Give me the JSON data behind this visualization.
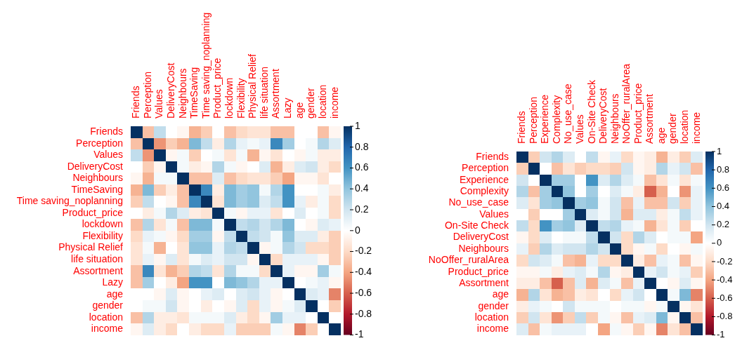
{
  "chart_data": [
    {
      "type": "heatmap",
      "categories": [
        "Friends",
        "Perception",
        "Values",
        "DeliveryCost",
        "Neighbours",
        "TimeSaving",
        "Time saving_noplanning",
        "Product_price",
        "lockdown",
        "Flexibility",
        "Physical Relief",
        "life situation",
        "Assortment",
        "Lazy",
        "age",
        "gender",
        "location",
        "income"
      ],
      "y_categories": [
        "Friends",
        "Perception",
        "Values",
        "DeliveryCost",
        "Neighbours",
        "TimeSaving",
        "Time saving_noplanning",
        "Product_price",
        "lockdown",
        "Flexibility",
        "Physical Relief",
        "life situation",
        "Assortment",
        "Lazy",
        "age",
        "gender",
        "location",
        "income"
      ],
      "cells": [
        [
          1,
          -0.3,
          0.25,
          0,
          -0.05,
          -0.35,
          -0.25,
          0,
          -0.3,
          -0.2,
          -0.15,
          -0.15,
          -0.3,
          -0.3,
          0,
          0,
          -0.3,
          -0.05
        ],
        [
          -0.3,
          1,
          -0.45,
          -0.25,
          -0.35,
          0.45,
          0.25,
          -0.1,
          0.3,
          0.1,
          0.05,
          0.1,
          0.65,
          0.35,
          0,
          0.05,
          0.3,
          0.15
        ],
        [
          0.25,
          -0.45,
          1,
          -0.05,
          0.05,
          -0.25,
          0,
          0.05,
          -0.15,
          0.05,
          -0.35,
          -0.05,
          -0.15,
          0,
          -0.05,
          0.05,
          -0.1,
          -0.1
        ],
        [
          0,
          -0.25,
          -0.05,
          1,
          0.05,
          -0.1,
          -0.05,
          0.3,
          0.05,
          -0.05,
          0,
          0.15,
          -0.35,
          -0.1,
          0.15,
          0.2,
          -0.1,
          -0.2
        ],
        [
          -0.05,
          -0.35,
          0.05,
          0.05,
          1,
          -0.3,
          -0.3,
          0.15,
          -0.3,
          -0.2,
          -0.15,
          -0.15,
          -0.25,
          -0.4,
          -0.05,
          -0.05,
          -0.15,
          0
        ],
        [
          -0.35,
          0.45,
          -0.25,
          -0.1,
          -0.3,
          1,
          0.65,
          -0.1,
          0.45,
          0.35,
          0.4,
          0.05,
          0.3,
          0.6,
          0,
          0,
          0.05,
          -0.1
        ],
        [
          -0.25,
          0.25,
          0,
          -0.05,
          -0.3,
          0.65,
          1,
          -0.15,
          0.45,
          0.35,
          0.4,
          0.15,
          0.25,
          0.6,
          0.1,
          -0.1,
          0.05,
          -0.2
        ],
        [
          0,
          -0.1,
          0.05,
          0.3,
          0.15,
          -0.1,
          -0.15,
          1,
          0.05,
          -0.05,
          0.1,
          0.1,
          -0.15,
          0,
          0.15,
          0,
          0.05,
          -0.2
        ],
        [
          -0.3,
          0.3,
          -0.15,
          0.05,
          -0.3,
          0.45,
          0.45,
          0.05,
          1,
          0.25,
          0.3,
          0.2,
          0.3,
          0.45,
          0,
          -0.05,
          0.15,
          0.1
        ],
        [
          -0.2,
          0.1,
          0.05,
          -0.05,
          -0.2,
          0.35,
          0.35,
          -0.05,
          0.25,
          1,
          0.25,
          0.2,
          0.05,
          0.4,
          0.15,
          0.15,
          -0.1,
          -0.25
        ],
        [
          -0.15,
          0.05,
          -0.35,
          0,
          -0.15,
          0.4,
          0.4,
          0.1,
          0.3,
          0.25,
          1,
          -0.05,
          0.05,
          0.3,
          0.2,
          -0.2,
          -0.2,
          -0.25
        ],
        [
          -0.15,
          0.1,
          -0.05,
          0.15,
          -0.15,
          0.05,
          0.15,
          0.1,
          0.2,
          0.2,
          -0.05,
          1,
          -0.2,
          0.1,
          0.1,
          0.1,
          -0.05,
          -0.25
        ],
        [
          -0.3,
          0.65,
          -0.15,
          -0.35,
          -0.25,
          0.3,
          0.25,
          -0.15,
          0.3,
          0.05,
          0.05,
          -0.2,
          1,
          0.1,
          -0.05,
          -0.05,
          0.35,
          0.05
        ],
        [
          -0.3,
          0.35,
          0,
          -0.1,
          -0.4,
          0.6,
          0.6,
          0,
          0.45,
          0.4,
          0.3,
          0.1,
          0.1,
          1,
          0,
          0.05,
          0.1,
          -0.05
        ],
        [
          0,
          0,
          -0.05,
          0.15,
          -0.05,
          0,
          0.1,
          0.15,
          0,
          0.15,
          0.2,
          0.1,
          -0.05,
          0,
          1,
          0.15,
          0.1,
          -0.5
        ],
        [
          0,
          0.05,
          0.05,
          0.2,
          -0.05,
          0,
          -0.1,
          0,
          -0.05,
          0.15,
          -0.2,
          0.1,
          -0.05,
          0.05,
          0.15,
          1,
          0,
          -0.25
        ],
        [
          -0.3,
          0.3,
          -0.1,
          -0.1,
          -0.15,
          0.05,
          0.05,
          0.05,
          0.15,
          -0.1,
          -0.2,
          -0.05,
          0.35,
          0.1,
          0.1,
          0,
          1,
          0
        ],
        [
          -0.05,
          0.15,
          -0.1,
          -0.2,
          0,
          -0.1,
          -0.2,
          -0.2,
          0.1,
          -0.25,
          -0.25,
          -0.25,
          0.05,
          -0.05,
          -0.5,
          -0.25,
          0,
          1
        ]
      ],
      "clim": [
        -1,
        1
      ],
      "cticks": [
        -1,
        -0.8,
        -0.6,
        -0.4,
        -0.2,
        0,
        0.2,
        0.4,
        0.6,
        0.8,
        1
      ]
    },
    {
      "type": "heatmap",
      "categories": [
        "Friends",
        "Perception",
        "Experience",
        "Complexity",
        "No_use_case",
        "Values",
        "On-Site Check",
        "DeliveryCost",
        "Neighbours",
        "NoOffer_ruralArea",
        "Product_price",
        "Assortment",
        "age",
        "gender",
        "location",
        "income"
      ],
      "y_categories": [
        "Friends",
        "Perception",
        "Experience",
        "Complexity",
        "No_use_case",
        "Values",
        "On-Site Check",
        "DeliveryCost",
        "Neighbours",
        "NoOffer_ruralArea",
        "Product_price",
        "Assortment",
        "age",
        "gender",
        "location",
        "income"
      ],
      "cells": [
        [
          1,
          -0.25,
          0.2,
          0.3,
          0.15,
          0,
          0.25,
          -0.05,
          0.1,
          -0.2,
          -0.05,
          -0.1,
          -0.35,
          -0.1,
          -0.25,
          0.15
        ],
        [
          -0.25,
          1,
          0,
          -0.3,
          -0.15,
          -0.25,
          -0.2,
          -0.2,
          -0.25,
          0.2,
          -0.05,
          -0.1,
          0.3,
          0.1,
          0.2,
          -0.3
        ],
        [
          0.2,
          0,
          1,
          0.35,
          0.35,
          0,
          0.6,
          0.15,
          0.3,
          0.15,
          0.05,
          -0.3,
          -0.15,
          0.05,
          -0.15,
          0.05
        ],
        [
          0.3,
          -0.3,
          0.35,
          1,
          0.4,
          0,
          0.35,
          0,
          0.15,
          0.05,
          -0.1,
          -0.6,
          -0.35,
          0,
          -0.45,
          0.1
        ],
        [
          0.15,
          -0.15,
          0.35,
          0.4,
          1,
          0.35,
          0.4,
          0.05,
          0.2,
          -0.3,
          0.1,
          -0.3,
          -0.3,
          0.2,
          -0.25,
          0.1
        ],
        [
          0,
          -0.25,
          0,
          0,
          0.35,
          1,
          0.15,
          0.05,
          0.2,
          -0.35,
          0.15,
          0.15,
          -0.1,
          0.05,
          0.25,
          0.1
        ],
        [
          0.25,
          -0.2,
          0.6,
          0.35,
          0.4,
          0.15,
          1,
          0.25,
          0.3,
          0.1,
          0.05,
          -0.35,
          -0.15,
          0.05,
          -0.25,
          0
        ],
        [
          -0.05,
          -0.2,
          0.15,
          0,
          0.05,
          0.05,
          0.25,
          1,
          0.2,
          -0.2,
          0.3,
          0.15,
          0,
          0.05,
          0.05,
          -0.4
        ],
        [
          0.1,
          -0.25,
          0.3,
          0.15,
          0.2,
          0.2,
          0.3,
          0.2,
          1,
          -0.2,
          -0.05,
          0.05,
          -0.2,
          0,
          -0.05,
          0.05
        ],
        [
          -0.2,
          0.2,
          0.15,
          0.05,
          -0.3,
          -0.35,
          0.1,
          -0.2,
          -0.2,
          1,
          -0.1,
          -0.3,
          0.1,
          0.05,
          -0.3,
          -0.05
        ],
        [
          -0.05,
          -0.05,
          0.05,
          -0.1,
          0.1,
          0.15,
          0.05,
          0.3,
          -0.05,
          -0.1,
          1,
          0.1,
          0.2,
          0.05,
          0.1,
          -0.25
        ],
        [
          -0.1,
          -0.1,
          -0.3,
          -0.6,
          -0.3,
          0.15,
          -0.35,
          0.15,
          0.05,
          -0.3,
          0.1,
          1,
          0,
          -0.05,
          0.15,
          -0.05
        ],
        [
          -0.35,
          0.3,
          -0.15,
          -0.35,
          -0.3,
          -0.1,
          -0.15,
          0,
          -0.2,
          0.1,
          0.2,
          0,
          1,
          0.05,
          0.45,
          -0.5
        ],
        [
          -0.1,
          0.1,
          0.05,
          0,
          0.2,
          0.05,
          0.05,
          0.05,
          0,
          0.05,
          0.05,
          -0.05,
          0.05,
          1,
          -0.05,
          -0.15
        ],
        [
          -0.25,
          0.2,
          -0.15,
          -0.45,
          -0.25,
          0.25,
          -0.25,
          0.05,
          -0.05,
          -0.3,
          0.1,
          0.15,
          0.45,
          -0.05,
          1,
          -0.3
        ],
        [
          0.15,
          -0.3,
          0.05,
          0.1,
          0.1,
          0.1,
          0,
          -0.4,
          0.05,
          -0.05,
          -0.25,
          -0.05,
          -0.5,
          -0.15,
          -0.3,
          1
        ]
      ],
      "clim": [
        -1,
        1
      ],
      "cticks": [
        -1,
        -0.8,
        -0.6,
        -0.4,
        -0.2,
        0,
        0.2,
        0.4,
        0.6,
        0.8,
        1
      ]
    }
  ]
}
